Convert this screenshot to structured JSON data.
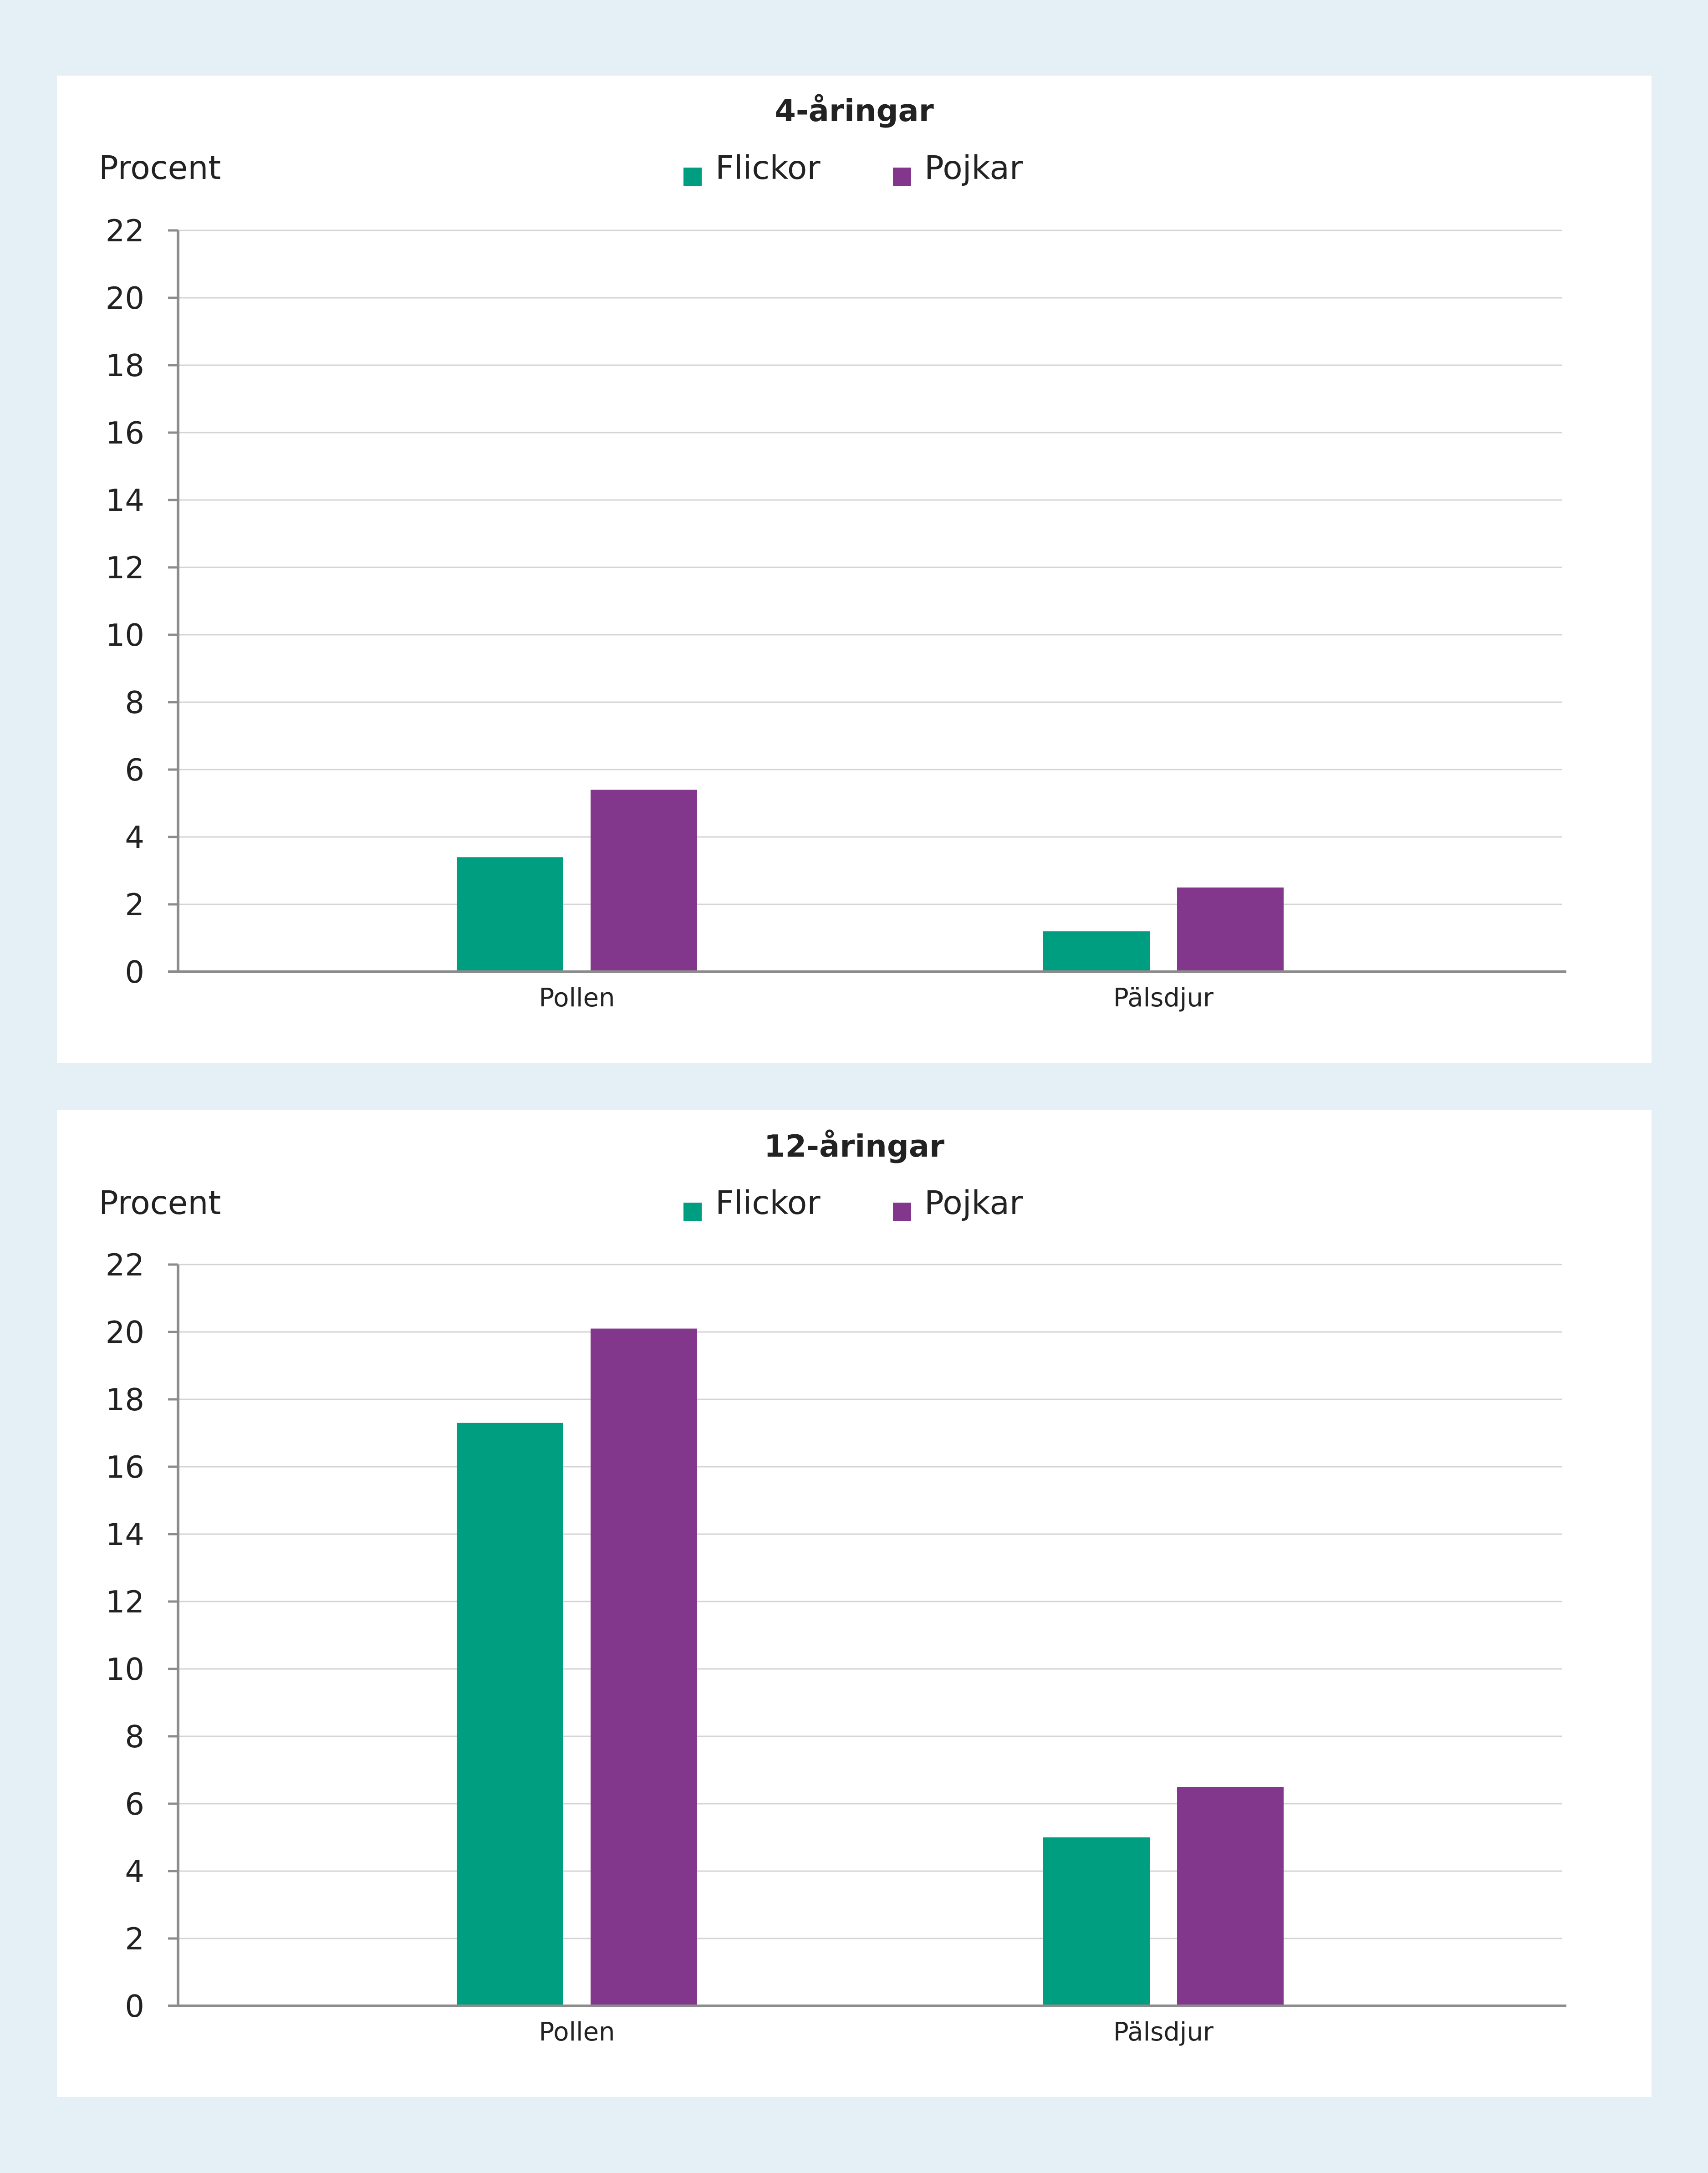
{
  "colors": {
    "Flickor": "#009e80",
    "Pojkar": "#82368c"
  },
  "chart_data": [
    {
      "type": "bar",
      "title": "4-åringar",
      "ylabel": "Procent",
      "xlabel": "",
      "ylim": [
        0,
        22
      ],
      "yticks": [
        "0",
        "2",
        "4",
        "6",
        "8",
        "10",
        "12",
        "14",
        "16",
        "18",
        "20",
        "22"
      ],
      "categories": [
        "Pollen",
        "Pälsdjur"
      ],
      "series": [
        {
          "name": "Flickor",
          "values": [
            3.4,
            1.2
          ]
        },
        {
          "name": "Pojkar",
          "values": [
            5.4,
            2.5
          ]
        }
      ],
      "legend_position": "top-center",
      "grid": true
    },
    {
      "type": "bar",
      "title": "12-åringar",
      "ylabel": "Procent",
      "xlabel": "",
      "ylim": [
        0,
        22
      ],
      "yticks": [
        "0",
        "2",
        "4",
        "6",
        "8",
        "10",
        "12",
        "14",
        "16",
        "18",
        "20",
        "22"
      ],
      "categories": [
        "Pollen",
        "Pälsdjur"
      ],
      "series": [
        {
          "name": "Flickor",
          "values": [
            17.3,
            5.0
          ]
        },
        {
          "name": "Pojkar",
          "values": [
            20.1,
            6.5
          ]
        }
      ],
      "legend_position": "top-center",
      "grid": true
    }
  ]
}
